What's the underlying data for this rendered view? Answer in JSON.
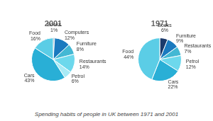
{
  "chart_data": [
    {
      "type": "pie",
      "title": "2001",
      "categories": [
        "Books",
        "Computers",
        "Furniture",
        "Restaurants",
        "Petrol",
        "Cars",
        "Food"
      ],
      "values": [
        1,
        12,
        8,
        14,
        6,
        43,
        16
      ],
      "value_labels": [
        "1%",
        "12%",
        "8%",
        "14%",
        "6%",
        "43%",
        "16%"
      ],
      "colors": [
        "#1b3a6b",
        "#1a7abf",
        "#44b8d4",
        "#6dd8ec",
        "#a8eaf5",
        "#29afd6",
        "#5bcde6"
      ],
      "data_labels": true
    },
    {
      "type": "pie",
      "title": "1971",
      "categories": [
        "Books",
        "Furniture",
        "Restaurants",
        "Petrol",
        "Cars",
        "Food"
      ],
      "values": [
        6,
        9,
        7,
        12,
        22,
        44
      ],
      "value_labels": [
        "6%",
        "9%",
        "7%",
        "12%",
        "22%",
        "44%"
      ],
      "colors": [
        "#1b3a6b",
        "#1a7abf",
        "#44b8d4",
        "#6dd8ec",
        "#29afd6",
        "#5bcde6"
      ],
      "data_labels": true
    }
  ],
  "caption": "Spending habits of people in UK between 1971 and 2001"
}
